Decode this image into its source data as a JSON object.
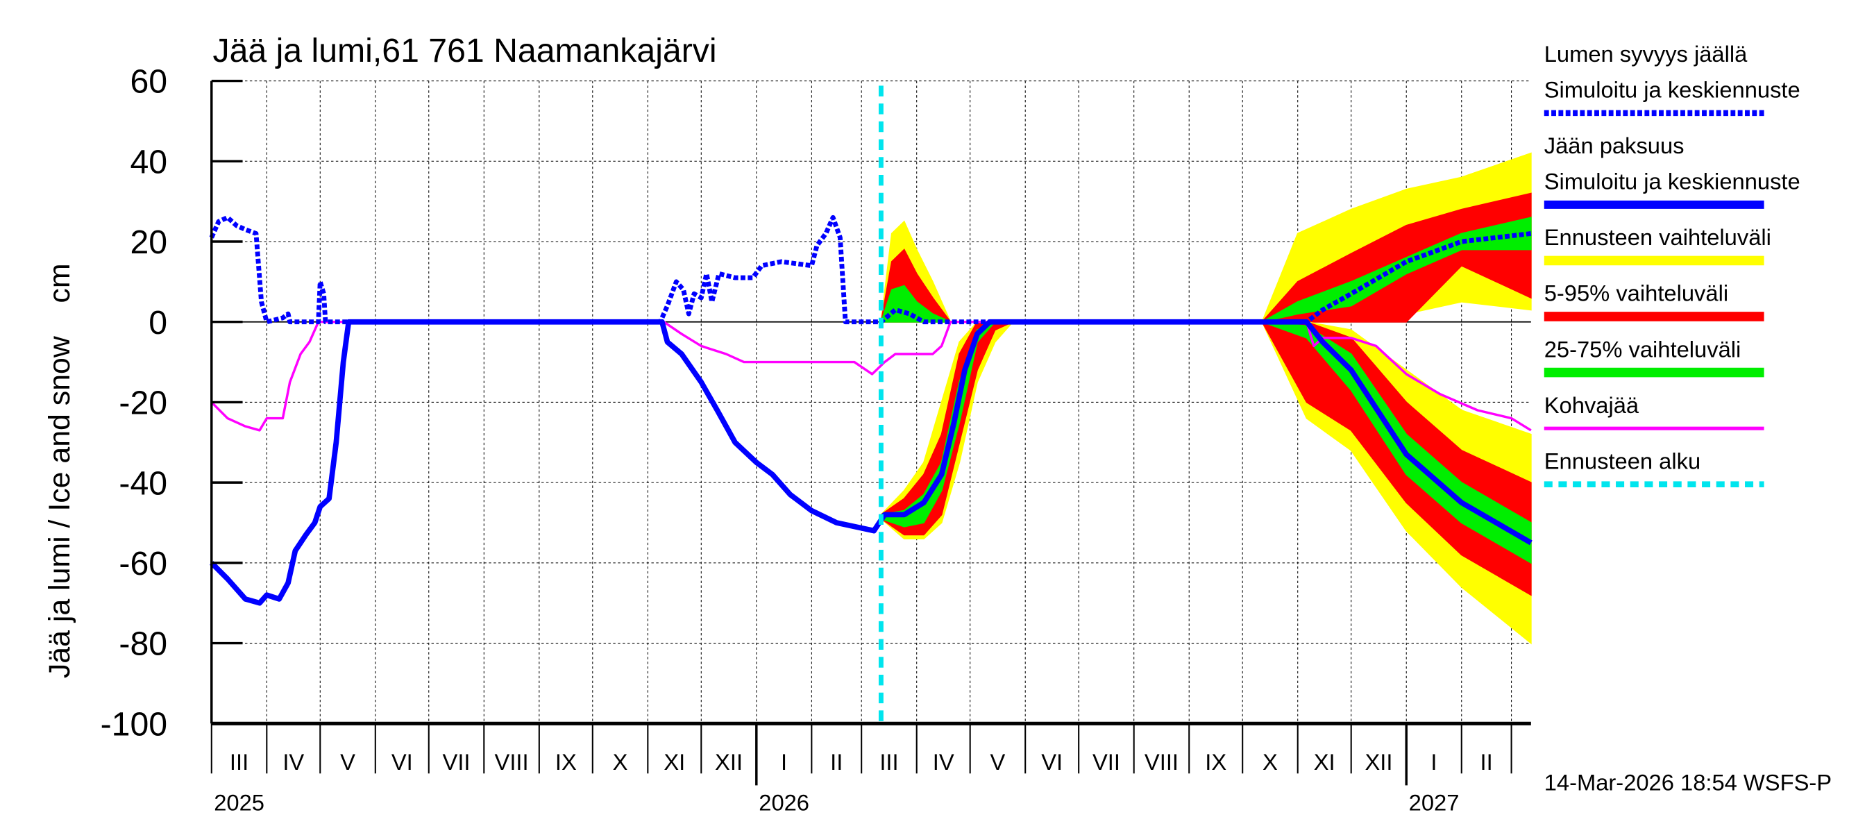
{
  "chart_data": {
    "type": "area",
    "title": "Jää ja lumi,61 761 Naamankajärvi",
    "ylabel": "Jää ja lumi / Ice and snow    cm",
    "ylim": [
      -100,
      60
    ],
    "yticks": [
      60,
      40,
      20,
      0,
      -20,
      -40,
      -60,
      -80,
      -100
    ],
    "xlim": [
      "2025-03-01",
      "2027-03-12"
    ],
    "grid": true,
    "legend_placement": "right",
    "forecast_start": "2026-03-12",
    "months": [
      "III",
      "IV",
      "V",
      "VI",
      "VII",
      "VIII",
      "IX",
      "X",
      "XI",
      "XII",
      "I",
      "II",
      "III",
      "IV",
      "V",
      "VI",
      "VII",
      "VIII",
      "IX",
      "X",
      "XI",
      "XII",
      "I",
      "II"
    ],
    "years": [
      {
        "label": "2025",
        "date": "2025-03-01"
      },
      {
        "label": "2026",
        "date": "2026-01-01"
      },
      {
        "label": "2027",
        "date": "2027-01-01"
      }
    ],
    "footer": "14-Mar-2026 18:54 WSFS-P",
    "legend": [
      {
        "label": "Lumen syvyys jäällä",
        "sublabel": "Simuloitu ja keskiennuste",
        "color": "#0000ff",
        "style": "dashed"
      },
      {
        "label": "Jään paksuus",
        "sublabel": "Simuloitu ja keskiennuste",
        "color": "#0000ff",
        "style": "solid"
      },
      {
        "label": "Ennusteen vaihteluväli",
        "color": "#ffff00",
        "style": "band"
      },
      {
        "label": "5-95% vaihteluväli",
        "color": "#ff0000",
        "style": "band"
      },
      {
        "label": "25-75% vaihteluväli",
        "color": "#00ee00",
        "style": "band"
      },
      {
        "label": "Kohvajää",
        "color": "#ff00ff",
        "style": "thin"
      },
      {
        "label": "Ennusteen alku",
        "color": "#00e5ee",
        "style": "dotted"
      }
    ],
    "series": [
      {
        "name": "Lumen syvyys jäällä",
        "color": "#0000ff",
        "points": [
          [
            "2025-03-01",
            21
          ],
          [
            "2025-03-05",
            25
          ],
          [
            "2025-03-10",
            26
          ],
          [
            "2025-03-15",
            24
          ],
          [
            "2025-03-20",
            23
          ],
          [
            "2025-03-26",
            22
          ],
          [
            "2025-03-29",
            5
          ],
          [
            "2025-04-01",
            0
          ],
          [
            "2025-04-10",
            1
          ],
          [
            "2025-04-13",
            2
          ],
          [
            "2025-04-14",
            0
          ],
          [
            "2025-04-30",
            0
          ],
          [
            "2025-05-01",
            10
          ],
          [
            "2025-05-03",
            7
          ],
          [
            "2025-05-04",
            0
          ],
          [
            "2025-11-08",
            0
          ],
          [
            "2025-11-12",
            4
          ],
          [
            "2025-11-17",
            10
          ],
          [
            "2025-11-21",
            8
          ],
          [
            "2025-11-24",
            2
          ],
          [
            "2025-11-27",
            7
          ],
          [
            "2025-12-01",
            6
          ],
          [
            "2025-12-04",
            12
          ],
          [
            "2025-12-07",
            5
          ],
          [
            "2025-12-11",
            12
          ],
          [
            "2025-12-20",
            11
          ],
          [
            "2025-12-30",
            11
          ],
          [
            "2026-01-04",
            14
          ],
          [
            "2026-01-15",
            15
          ],
          [
            "2026-02-01",
            14
          ],
          [
            "2026-02-04",
            19
          ],
          [
            "2026-02-09",
            22
          ],
          [
            "2026-02-13",
            26
          ],
          [
            "2026-02-17",
            21
          ],
          [
            "2026-02-20",
            0
          ],
          [
            "2026-03-12",
            0
          ],
          [
            "2026-03-20",
            3
          ],
          [
            "2026-03-28",
            2
          ],
          [
            "2026-04-05",
            0
          ],
          [
            "2026-11-06",
            0
          ],
          [
            "2026-11-15",
            3
          ],
          [
            "2026-12-01",
            7
          ],
          [
            "2027-01-01",
            15
          ],
          [
            "2027-02-01",
            20
          ],
          [
            "2027-03-12",
            22
          ]
        ]
      },
      {
        "name": "Jään paksuus",
        "color": "#0000ff",
        "points": [
          [
            "2025-03-01",
            -60
          ],
          [
            "2025-03-10",
            -64
          ],
          [
            "2025-03-20",
            -69
          ],
          [
            "2025-03-28",
            -70
          ],
          [
            "2025-04-01",
            -68
          ],
          [
            "2025-04-08",
            -69
          ],
          [
            "2025-04-13",
            -65
          ],
          [
            "2025-04-17",
            -57
          ],
          [
            "2025-04-23",
            -53
          ],
          [
            "2025-04-28",
            -50
          ],
          [
            "2025-05-01",
            -46
          ],
          [
            "2025-05-06",
            -44
          ],
          [
            "2025-05-10",
            -30
          ],
          [
            "2025-05-14",
            -10
          ],
          [
            "2025-05-17",
            0
          ],
          [
            "2025-11-09",
            0
          ],
          [
            "2025-11-12",
            -5
          ],
          [
            "2025-11-20",
            -8
          ],
          [
            "2025-12-01",
            -15
          ],
          [
            "2025-12-10",
            -22
          ],
          [
            "2025-12-20",
            -30
          ],
          [
            "2026-01-01",
            -35
          ],
          [
            "2026-01-10",
            -38
          ],
          [
            "2026-01-20",
            -43
          ],
          [
            "2026-02-01",
            -47
          ],
          [
            "2026-02-15",
            -50
          ],
          [
            "2026-03-08",
            -52
          ],
          [
            "2026-03-14",
            -48
          ],
          [
            "2026-03-25",
            -48
          ],
          [
            "2026-04-05",
            -45
          ],
          [
            "2026-04-15",
            -38
          ],
          [
            "2026-04-22",
            -25
          ],
          [
            "2026-04-28",
            -12
          ],
          [
            "2026-05-05",
            -3
          ],
          [
            "2026-05-12",
            0
          ],
          [
            "2026-11-06",
            0
          ],
          [
            "2026-11-15",
            -5
          ],
          [
            "2026-12-01",
            -12
          ],
          [
            "2027-01-01",
            -33
          ],
          [
            "2027-02-01",
            -45
          ],
          [
            "2027-03-12",
            -55
          ]
        ]
      },
      {
        "name": "Kohvajää",
        "color": "#ff00ff",
        "points": [
          [
            "2025-03-01",
            -20
          ],
          [
            "2025-03-10",
            -24
          ],
          [
            "2025-03-20",
            -26
          ],
          [
            "2025-03-28",
            -27
          ],
          [
            "2025-04-01",
            -24
          ],
          [
            "2025-04-10",
            -24
          ],
          [
            "2025-04-14",
            -15
          ],
          [
            "2025-04-20",
            -8
          ],
          [
            "2025-04-25",
            -5
          ],
          [
            "2025-04-30",
            0
          ],
          [
            "2025-11-10",
            0
          ],
          [
            "2025-11-20",
            -3
          ],
          [
            "2025-12-01",
            -6
          ],
          [
            "2025-12-15",
            -8
          ],
          [
            "2025-12-25",
            -10
          ],
          [
            "2026-02-25",
            -10
          ],
          [
            "2026-03-07",
            -13
          ],
          [
            "2026-03-14",
            -10
          ],
          [
            "2026-03-20",
            -8
          ],
          [
            "2026-04-10",
            -8
          ],
          [
            "2026-04-15",
            -6
          ],
          [
            "2026-04-20",
            0
          ],
          [
            "2026-11-06",
            0
          ],
          [
            "2026-11-10",
            -6
          ],
          [
            "2026-11-15",
            -4
          ],
          [
            "2026-12-01",
            -4
          ],
          [
            "2026-12-15",
            -6
          ],
          [
            "2027-01-01",
            -13
          ],
          [
            "2027-01-20",
            -18
          ],
          [
            "2027-02-10",
            -22
          ],
          [
            "2027-03-01",
            -24
          ],
          [
            "2027-03-12",
            -27
          ]
        ]
      }
    ],
    "bands": [
      {
        "kind": "Ennusteen vaihteluväli",
        "color": "#ffff00",
        "dates": [
          "2026-03-12",
          "2026-03-18",
          "2026-03-25",
          "2026-04-01",
          "2026-04-10",
          "2026-04-20"
        ],
        "lo": [
          0,
          0,
          0,
          0,
          0,
          0
        ],
        "hi": [
          0,
          22,
          25,
          18,
          10,
          0
        ]
      },
      {
        "kind": "5-95% vaihteluväli",
        "color": "#ff0000",
        "dates": [
          "2026-03-12",
          "2026-03-18",
          "2026-03-25",
          "2026-04-01",
          "2026-04-10",
          "2026-04-20"
        ],
        "lo": [
          0,
          0,
          0,
          0,
          0,
          0
        ],
        "hi": [
          0,
          15,
          18,
          12,
          6,
          0
        ]
      },
      {
        "kind": "25-75% vaihteluväli",
        "color": "#00ee00",
        "dates": [
          "2026-03-12",
          "2026-03-18",
          "2026-03-25",
          "2026-04-01",
          "2026-04-10",
          "2026-04-20"
        ],
        "lo": [
          0,
          0,
          0,
          0,
          0,
          0
        ],
        "hi": [
          0,
          8,
          9,
          5,
          2,
          0
        ]
      },
      {
        "kind": "Ennusteen vaihteluväli",
        "color": "#ffff00",
        "dates": [
          "2026-03-12",
          "2026-03-25",
          "2026-04-05",
          "2026-04-15",
          "2026-04-25",
          "2026-05-05",
          "2026-05-15",
          "2026-05-25"
        ],
        "lo": [
          -49,
          -54,
          -54,
          -50,
          -35,
          -15,
          -5,
          0
        ],
        "hi": [
          -48,
          -42,
          -35,
          -20,
          -5,
          0,
          0,
          0
        ]
      },
      {
        "kind": "5-95% vaihteluväli",
        "color": "#ff0000",
        "dates": [
          "2026-03-12",
          "2026-03-25",
          "2026-04-05",
          "2026-04-15",
          "2026-04-25",
          "2026-05-05",
          "2026-05-15",
          "2026-05-25"
        ],
        "lo": [
          -49,
          -53,
          -53,
          -48,
          -30,
          -12,
          -2,
          0
        ],
        "hi": [
          -48,
          -44,
          -38,
          -28,
          -8,
          0,
          0,
          0
        ]
      },
      {
        "kind": "25-75% vaihteluväli",
        "color": "#00ee00",
        "dates": [
          "2026-03-12",
          "2026-03-25",
          "2026-04-05",
          "2026-04-15",
          "2026-04-25",
          "2026-05-05",
          "2026-05-15",
          "2026-05-25"
        ],
        "lo": [
          -49,
          -51,
          -50,
          -42,
          -25,
          -5,
          0,
          0
        ],
        "hi": [
          -48,
          -47,
          -43,
          -35,
          -15,
          -2,
          0,
          0
        ]
      },
      {
        "kind": "Ennusteen vaihteluväli",
        "color": "#ffff00",
        "dates": [
          "2026-10-12",
          "2026-11-01",
          "2026-12-01",
          "2027-01-01",
          "2027-02-01",
          "2027-03-12"
        ],
        "lo": [
          0,
          0,
          0,
          2,
          5,
          3
        ],
        "hi": [
          0,
          22,
          28,
          33,
          36,
          42
        ]
      },
      {
        "kind": "5-95% vaihteluväli",
        "color": "#ff0000",
        "dates": [
          "2026-10-12",
          "2026-11-01",
          "2026-12-01",
          "2027-01-01",
          "2027-02-01",
          "2027-03-12"
        ],
        "lo": [
          0,
          0,
          0,
          0,
          14,
          6
        ],
        "hi": [
          0,
          10,
          17,
          24,
          28,
          32
        ]
      },
      {
        "kind": "25-75% vaihteluväli",
        "color": "#00ee00",
        "dates": [
          "2026-10-12",
          "2026-11-01",
          "2026-12-01",
          "2027-01-01",
          "2027-02-01",
          "2027-03-12"
        ],
        "lo": [
          0,
          2,
          4,
          12,
          18,
          18
        ],
        "hi": [
          0,
          5,
          10,
          16,
          22,
          26
        ]
      },
      {
        "kind": "Ennusteen vaihteluväli",
        "color": "#ffff00",
        "dates": [
          "2026-10-12",
          "2026-11-06",
          "2026-12-01",
          "2027-01-01",
          "2027-02-01",
          "2027-03-12"
        ],
        "lo": [
          0,
          -24,
          -32,
          -52,
          -66,
          -80
        ],
        "hi": [
          0,
          0,
          -2,
          -12,
          -22,
          -28
        ]
      },
      {
        "kind": "5-95% vaihteluväli",
        "color": "#ff0000",
        "dates": [
          "2026-10-12",
          "2026-11-06",
          "2026-12-01",
          "2027-01-01",
          "2027-02-01",
          "2027-03-12"
        ],
        "lo": [
          0,
          -20,
          -27,
          -45,
          -58,
          -68
        ],
        "hi": [
          0,
          0,
          -4,
          -20,
          -32,
          -40
        ]
      },
      {
        "kind": "25-75% vaihteluväli",
        "color": "#00ee00",
        "dates": [
          "2026-10-12",
          "2026-11-06",
          "2026-12-01",
          "2027-01-01",
          "2027-02-01",
          "2027-03-12"
        ],
        "lo": [
          0,
          -4,
          -17,
          -38,
          -50,
          -60
        ],
        "hi": [
          0,
          -1,
          -8,
          -28,
          -40,
          -50
        ]
      }
    ]
  }
}
